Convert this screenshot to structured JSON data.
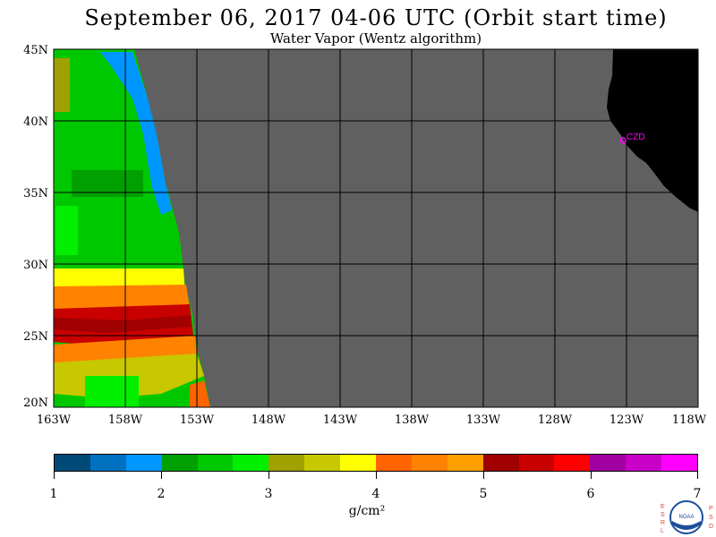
{
  "header": {
    "title": "September 06, 2017  04-06 UTC  (Orbit start time)",
    "subtitle": "Water Vapor (Wentz algorithm)"
  },
  "axes": {
    "lat_labels": [
      "45N",
      "40N",
      "35N",
      "30N",
      "25N",
      "20N"
    ],
    "lon_labels": [
      "163W",
      "158W",
      "153W",
      "148W",
      "143W",
      "138W",
      "133W",
      "128W",
      "123W",
      "118W"
    ]
  },
  "station": {
    "label": "CZD",
    "color": "#ff00ff"
  },
  "colorbar": {
    "ticks": [
      "1",
      "2",
      "3",
      "4",
      "5",
      "6",
      "7"
    ],
    "units": "g/cm²",
    "colors": [
      "#004a78",
      "#0070c0",
      "#0096ff",
      "#00a000",
      "#00c800",
      "#00f000",
      "#a0a000",
      "#c8c800",
      "#ffff00",
      "#ff6400",
      "#ff8200",
      "#ffa000",
      "#a00000",
      "#c80000",
      "#ff0000",
      "#a000a0",
      "#c800c8",
      "#ff00ff"
    ]
  },
  "logo": {
    "left_letters": "ESRL",
    "right_letters": "PSD",
    "center_text": "NOAA"
  },
  "style": {
    "no_data": "#606060",
    "land": "#000000"
  }
}
